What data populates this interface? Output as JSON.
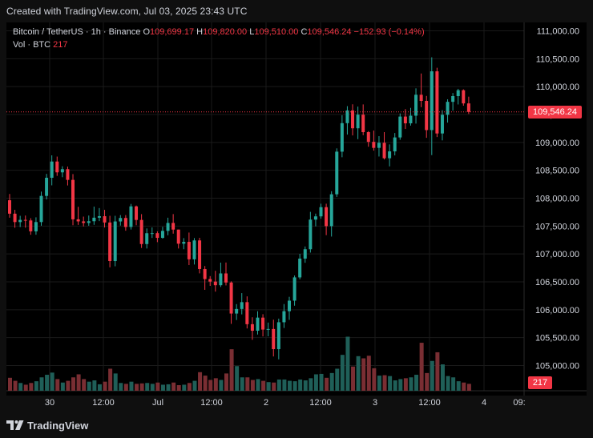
{
  "header": {
    "created_text": "Created with TradingView.com, Jul 03, 2025 23:43 UTC"
  },
  "legend": {
    "symbol": "Bitcoin / TetherUS · 1h · Binance",
    "open_label": "O",
    "open": "109,699.17",
    "high_label": "H",
    "high": "109,820.00",
    "low_label": "L",
    "low": "109,510.00",
    "close_label": "C",
    "close": "109,546.24",
    "change": "−152.93 (−0.14%)",
    "vol_label": "Vol · BTC",
    "vol_value": "217"
  },
  "price_axis": {
    "ticks": [
      "111,000.00",
      "110,500.00",
      "110,000.00",
      "109,500.00",
      "109,000.00",
      "108,500.00",
      "108,000.00",
      "107,500.00",
      "107,000.00",
      "106,500.00",
      "106,000.00",
      "105,500.00",
      "105,000.00"
    ],
    "last_price_label": "109,546.24",
    "volume_label": "217"
  },
  "time_axis": {
    "ticks": [
      "30",
      "12:00",
      "Jul",
      "12:00",
      "2",
      "12:00",
      "3",
      "12:00",
      "4",
      "09:"
    ]
  },
  "footer": {
    "brand": "TradingView"
  },
  "colors": {
    "up": "#26a69a",
    "down": "#f23645",
    "up_volume": "#1f5f58",
    "down_volume": "#7a2e33"
  },
  "chart_data": {
    "type": "candlestick",
    "price_range": [
      104800,
      111200
    ],
    "candles": [
      [
        107963,
        108075,
        107651,
        107722
      ],
      [
        107722,
        107791,
        107470,
        107572
      ],
      [
        107572,
        107684,
        107482,
        107611
      ],
      [
        107611,
        107689,
        107471,
        107601
      ],
      [
        107601,
        107641,
        107344,
        107406
      ],
      [
        107406,
        107657,
        107345,
        107572
      ],
      [
        107572,
        108118,
        107506,
        108041
      ],
      [
        108041,
        108436,
        107977,
        108366
      ],
      [
        108366,
        108768,
        108230,
        108657
      ],
      [
        108657,
        108746,
        108400,
        108463
      ],
      [
        108463,
        108572,
        108376,
        108520
      ],
      [
        108520,
        108567,
        108228,
        108328
      ],
      [
        108328,
        108432,
        107515,
        107621
      ],
      [
        107621,
        107845,
        107521,
        107584
      ],
      [
        107584,
        107670,
        107494,
        107556
      ],
      [
        107556,
        107689,
        107506,
        107587
      ],
      [
        107587,
        107849,
        107522,
        107650
      ],
      [
        107650,
        107823,
        107589,
        107677
      ],
      [
        107677,
        107791,
        107475,
        107564
      ],
      [
        107564,
        107684,
        106760,
        106873
      ],
      [
        106873,
        107684,
        106779,
        107583
      ],
      [
        107583,
        107697,
        107509,
        107645
      ],
      [
        107645,
        107697,
        107417,
        107484
      ],
      [
        107484,
        107897,
        107438,
        107853
      ],
      [
        107853,
        107868,
        107515,
        107610
      ],
      [
        107610,
        107714,
        107108,
        107178
      ],
      [
        107178,
        107458,
        107098,
        107372
      ],
      [
        107372,
        107476,
        107287,
        107373
      ],
      [
        107373,
        107406,
        107212,
        107289
      ],
      [
        107289,
        107487,
        107275,
        107414
      ],
      [
        107414,
        107650,
        107335,
        107556
      ],
      [
        107556,
        107715,
        107364,
        107437
      ],
      [
        107437,
        107437,
        107098,
        107184
      ],
      [
        107184,
        107284,
        107085,
        107217
      ],
      [
        107217,
        107384,
        106801,
        106904
      ],
      [
        106904,
        107285,
        106811,
        107243
      ],
      [
        107243,
        107290,
        106652,
        106730
      ],
      [
        106730,
        106784,
        106357,
        106550
      ],
      [
        106550,
        106603,
        106428,
        106505
      ],
      [
        106505,
        106698,
        106325,
        106440
      ],
      [
        106440,
        106845,
        106408,
        106651
      ],
      [
        106651,
        106847,
        106436,
        106488
      ],
      [
        106488,
        106509,
        105747,
        105932
      ],
      [
        105932,
        106101,
        105816,
        106014
      ],
      [
        106014,
        106298,
        105917,
        106136
      ],
      [
        106136,
        106240,
        105665,
        105741
      ],
      [
        105741,
        105865,
        105461,
        105624
      ],
      [
        105624,
        105973,
        105556,
        105859
      ],
      [
        105859,
        105920,
        105522,
        105645
      ],
      [
        105645,
        105770,
        105524,
        105655
      ],
      [
        105655,
        105822,
        105163,
        105294
      ],
      [
        105294,
        105841,
        105111,
        105776
      ],
      [
        105776,
        106102,
        105673,
        105974
      ],
      [
        105974,
        106232,
        105819,
        106163
      ],
      [
        106163,
        106614,
        106073,
        106580
      ],
      [
        106580,
        107002,
        106546,
        106917
      ],
      [
        106917,
        107134,
        106842,
        107085
      ],
      [
        107085,
        107755,
        107025,
        107616
      ],
      [
        107616,
        107723,
        107495,
        107674
      ],
      [
        107674,
        107901,
        107633,
        107839
      ],
      [
        107839,
        107901,
        107337,
        107499
      ],
      [
        107499,
        108125,
        107312,
        108070
      ],
      [
        108070,
        108893,
        108023,
        108834
      ],
      [
        108834,
        109487,
        108734,
        109345
      ],
      [
        109345,
        109650,
        109140,
        109573
      ],
      [
        109573,
        109683,
        109125,
        109253
      ],
      [
        109253,
        109642,
        109058,
        109497
      ],
      [
        109497,
        109681,
        109129,
        109184
      ],
      [
        109184,
        109202,
        108922,
        109010
      ],
      [
        109010,
        109212,
        108852,
        108902
      ],
      [
        108902,
        109112,
        108747,
        108993
      ],
      [
        108993,
        109184,
        108694,
        108716
      ],
      [
        108716,
        108964,
        108570,
        108839
      ],
      [
        108839,
        109168,
        108767,
        109089
      ],
      [
        109089,
        109519,
        109047,
        109463
      ],
      [
        109463,
        109597,
        109241,
        109342
      ],
      [
        109342,
        109619,
        109301,
        109479
      ],
      [
        109479,
        109969,
        109337,
        109854
      ],
      [
        109854,
        110235,
        109632,
        109744
      ],
      [
        109744,
        109833,
        109082,
        109221
      ],
      [
        109221,
        110526,
        108772,
        110274
      ],
      [
        110274,
        110338,
        109096,
        109160
      ],
      [
        109160,
        109579,
        109036,
        109495
      ],
      [
        109495,
        109773,
        109355,
        109727
      ],
      [
        109727,
        109885,
        109569,
        109830
      ],
      [
        109830,
        109960,
        109680,
        109935
      ],
      [
        109935,
        109951,
        109658,
        109699
      ],
      [
        109699,
        109820,
        109510,
        109546
      ]
    ],
    "volume": [
      3.0,
      2.3,
      1.8,
      1.4,
      1.8,
      2.2,
      3.1,
      3.7,
      4.2,
      2.7,
      1.9,
      2.3,
      3.1,
      3.8,
      2.7,
      2.1,
      2.4,
      1.5,
      2.1,
      5.1,
      4.0,
      1.8,
      1.6,
      2.1,
      1.6,
      1.7,
      1.8,
      1.6,
      1.9,
      1.4,
      1.5,
      1.9,
      1.3,
      1.4,
      1.8,
      2.3,
      4.3,
      3.5,
      2.5,
      2.9,
      2.5,
      4.0,
      9.6,
      5.7,
      3.1,
      3.1,
      2.5,
      2.7,
      2.3,
      2.0,
      1.9,
      2.6,
      2.6,
      2.3,
      2.2,
      2.6,
      2.4,
      2.9,
      3.8,
      3.9,
      3.0,
      4.1,
      5.1,
      8.3,
      12.5,
      5.6,
      8.0,
      7.5,
      8.1,
      5.2,
      3.5,
      3.6,
      3.4,
      2.4,
      2.7,
      2.9,
      3.1,
      3.7,
      11.1,
      4.1,
      6.9,
      8.9,
      6.1,
      3.4,
      3.1,
      2.2,
      1.9,
      1.6
    ]
  }
}
